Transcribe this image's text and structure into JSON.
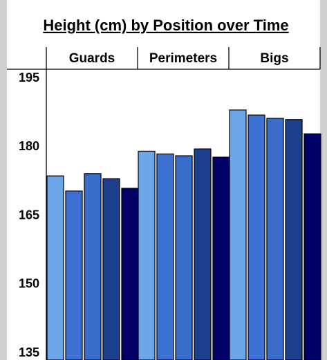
{
  "chart_data": {
    "type": "bar",
    "title": "Height (cm) by Position over Time",
    "categories": [
      "Guards",
      "Perimeters",
      "Bigs"
    ],
    "series": [
      {
        "color": "#6ca6e8",
        "values": [
          173.7,
          179.1,
          188.1
        ]
      },
      {
        "color": "#3d72d4",
        "values": [
          170.4,
          178.5,
          187.0
        ]
      },
      {
        "color": "#3a6ccc",
        "values": [
          174.2,
          178.1,
          186.3
        ]
      },
      {
        "color": "#1e3f8c",
        "values": [
          173.1,
          179.6,
          186.0
        ]
      },
      {
        "color": "#000066",
        "values": [
          171.0,
          177.8,
          182.9
        ]
      }
    ],
    "ylim": [
      133.5,
      197
    ],
    "yticks": [
      135,
      150,
      165,
      180,
      195
    ],
    "grid": false
  }
}
